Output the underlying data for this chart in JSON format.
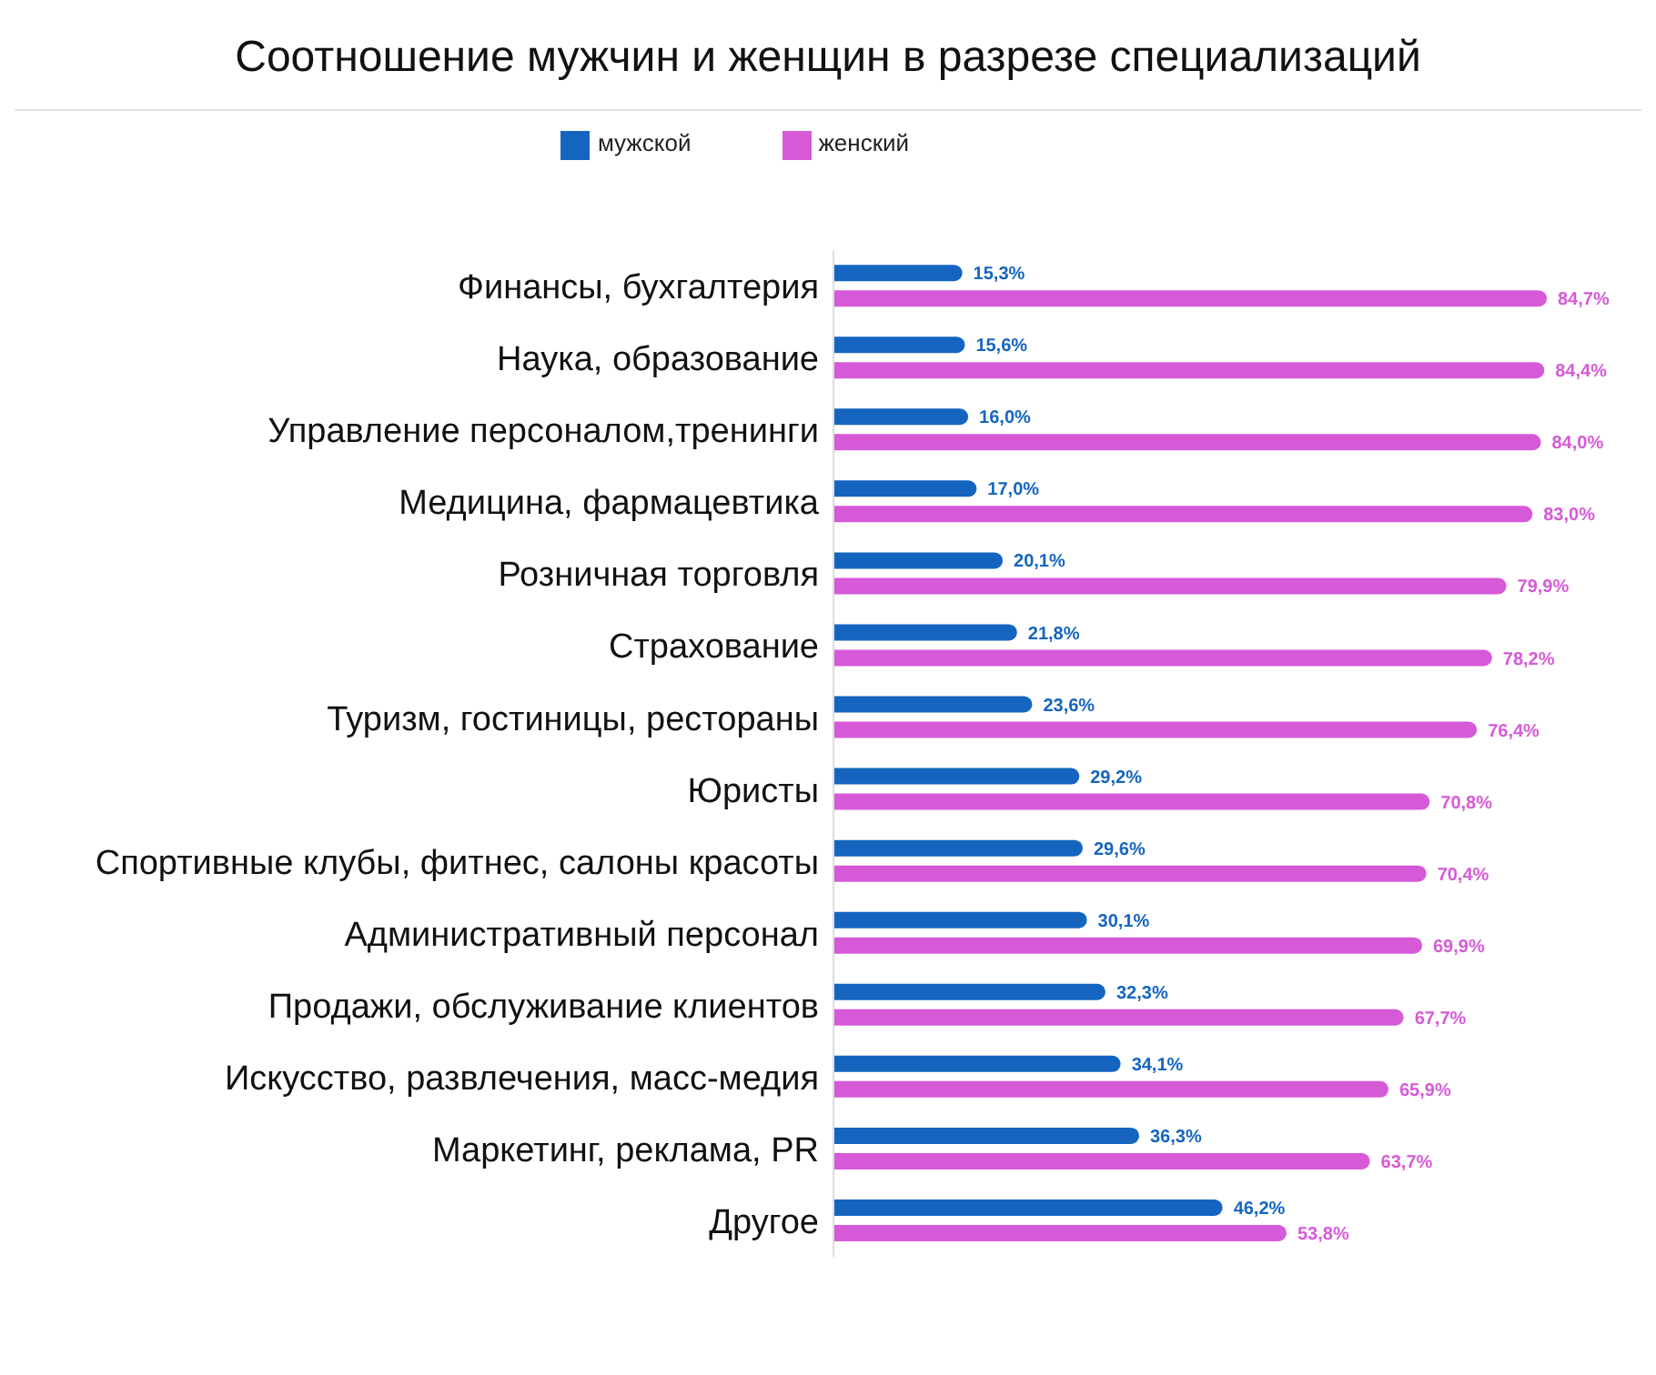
{
  "chart_data": {
    "type": "bar",
    "orientation": "horizontal",
    "title": "Соотношение мужчин и женщин в разрезе специализаций",
    "categories": [
      "Финансы, бухгалтерия",
      "Наука, образование",
      "Управление персоналом,тренинги",
      "Медицина, фармацевтика",
      "Розничная торговля",
      "Страхование",
      "Туризм, гостиницы, рестораны",
      "Юристы",
      "Спортивные клубы, фитнес, салоны красоты",
      "Административный персонал",
      "Продажи, обслуживание клиентов",
      "Искусство, развлечения, масс-медия",
      "Маркетинг, реклама, PR",
      "Другое"
    ],
    "series": [
      {
        "name": "мужской",
        "color": "#1565c0",
        "values": [
          15.3,
          15.6,
          16.0,
          17.0,
          20.1,
          21.8,
          23.6,
          29.2,
          29.6,
          30.1,
          32.3,
          34.1,
          36.3,
          46.2
        ],
        "value_labels": [
          "15,3%",
          "15,6%",
          "16,0%",
          "17,0%",
          "20,1%",
          "21,8%",
          "23,6%",
          "29,2%",
          "29,6%",
          "30,1%",
          "32,3%",
          "34,1%",
          "36,3%",
          "46,2%"
        ]
      },
      {
        "name": "женский",
        "color": "#d65ad8",
        "values": [
          84.7,
          84.4,
          84.0,
          83.0,
          79.9,
          78.2,
          76.4,
          70.8,
          70.4,
          69.9,
          67.7,
          65.9,
          63.7,
          53.8
        ],
        "value_labels": [
          "84,7%",
          "84,4%",
          "84,0%",
          "83,0%",
          "79,9%",
          "78,2%",
          "76,4%",
          "70,8%",
          "70,4%",
          "69,9%",
          "67,7%",
          "65,9%",
          "63,7%",
          "53,8%"
        ]
      }
    ],
    "tick_labels": "y",
    "legend": "top"
  }
}
